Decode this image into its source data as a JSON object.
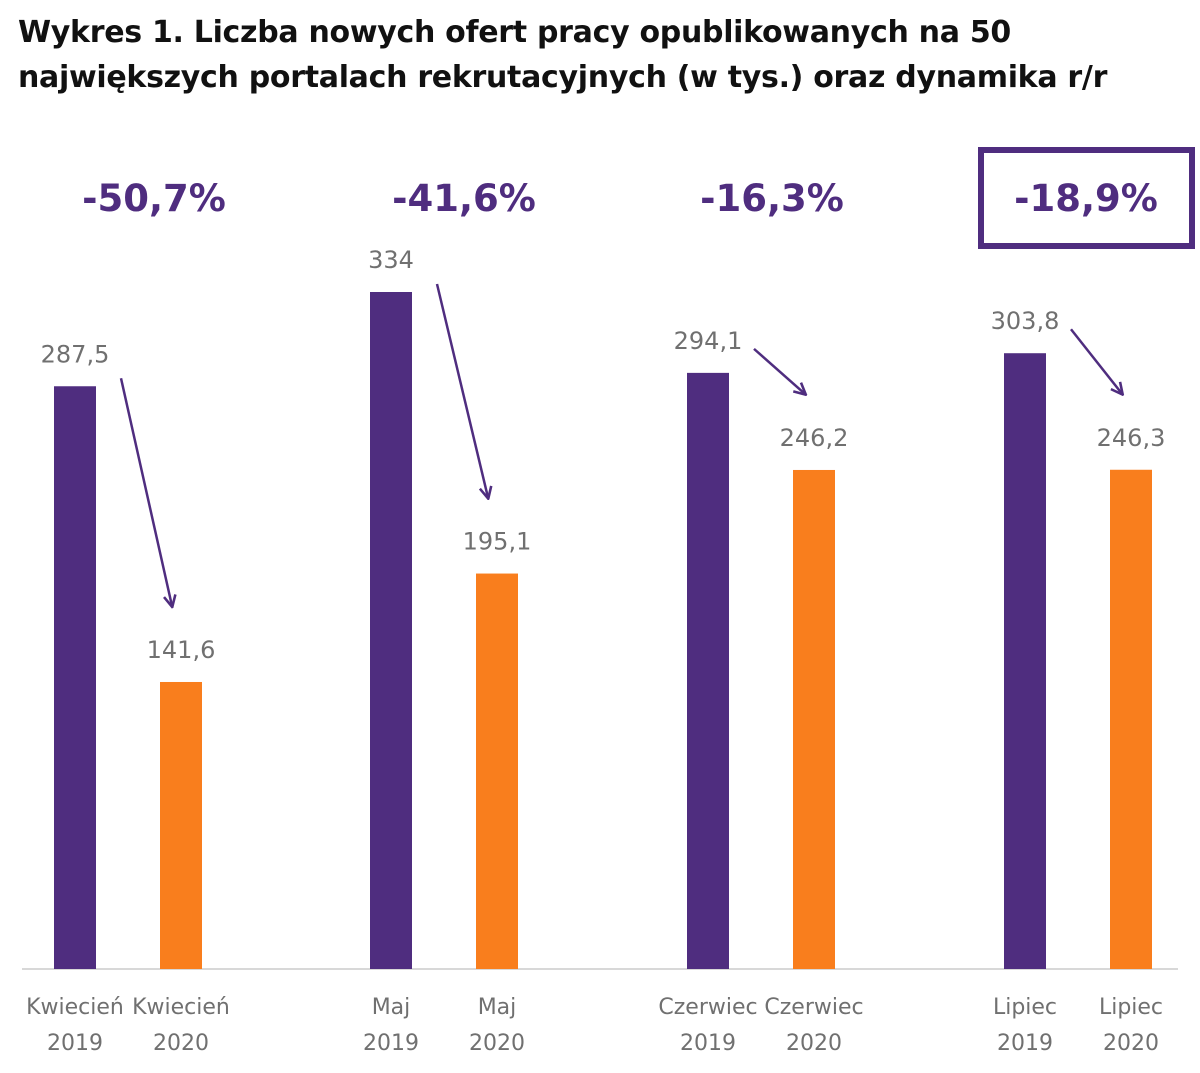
{
  "title": "Wykres 1. Liczba nowych ofert pracy opublikowanych na 50 największych portalach rekrutacyjnych (w tys.) oraz dynamika r/r",
  "colors": {
    "y2019": "#4f2d7f",
    "y2020": "#f97e1d",
    "dynamics": "#4f2d7f",
    "axis": "#d8d8d8",
    "labels": "#707070"
  },
  "chart_data": {
    "type": "bar",
    "groups": [
      {
        "month": "Kwiecień",
        "bars": [
          {
            "category": "Kwiecień",
            "year": "2019",
            "value": 287.5,
            "label": "287,5"
          },
          {
            "category": "Kwiecień",
            "year": "2020",
            "value": 141.6,
            "label": "141,6"
          }
        ],
        "change": -50.7,
        "change_label": "-50,7%",
        "highlighted": false
      },
      {
        "month": "Maj",
        "bars": [
          {
            "category": "Maj",
            "year": "2019",
            "value": 334,
            "label": "334"
          },
          {
            "category": "Maj",
            "year": "2020",
            "value": 195.1,
            "label": "195,1"
          }
        ],
        "change": -41.6,
        "change_label": "-41,6%",
        "highlighted": false
      },
      {
        "month": "Czerwiec",
        "bars": [
          {
            "category": "Czerwiec",
            "year": "2019",
            "value": 294.1,
            "label": "294,1"
          },
          {
            "category": "Czerwiec",
            "year": "2020",
            "value": 246.2,
            "label": "246,2"
          }
        ],
        "change": -16.3,
        "change_label": "-16,3%",
        "highlighted": false
      },
      {
        "month": "Lipiec",
        "bars": [
          {
            "category": "Lipiec",
            "year": "2019",
            "value": 303.8,
            "label": "303,8"
          },
          {
            "category": "Lipiec",
            "year": "2020",
            "value": 246.3,
            "label": "246,3"
          }
        ],
        "change": -18.9,
        "change_label": "-18,9%",
        "highlighted": true
      }
    ],
    "ylim": [
      0,
      334
    ],
    "grid": false,
    "legend": "none"
  }
}
